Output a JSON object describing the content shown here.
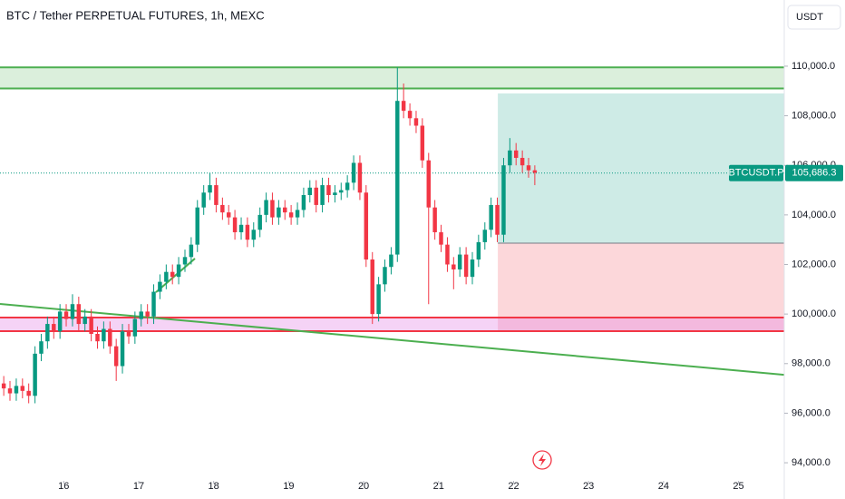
{
  "chart_data": {
    "type": "candlestick",
    "title": "BTC / Tether PERPETUAL FUTURES, 1h, MEXC",
    "currency": "USDT",
    "symbol": "BTCUSDT.P",
    "last_price": {
      "value": 105686.3,
      "label": "105,686.3"
    },
    "up_color": "#089981",
    "down_color": "#f23645",
    "xlim": [
      15.15,
      25.61
    ],
    "xticks": [
      16,
      17,
      18,
      19,
      20,
      21,
      22,
      23,
      24,
      25
    ],
    "ylim": [
      93270,
      112670
    ],
    "yticks": [
      {
        "value": 94000,
        "label": "94,000.0"
      },
      {
        "value": 96000,
        "label": "96,000.0"
      },
      {
        "value": 98000,
        "label": "98,000.0"
      },
      {
        "value": 100000,
        "label": "100,000.0"
      },
      {
        "value": 102000,
        "label": "102,000.0"
      },
      {
        "value": 104000,
        "label": "104,000.0"
      },
      {
        "value": 106000,
        "label": "106,000.0"
      },
      {
        "value": 108000,
        "label": "108,000.0"
      },
      {
        "value": 110000,
        "label": "110,000.0"
      }
    ],
    "x": [
      15.2,
      15.283,
      15.367,
      15.45,
      15.533,
      15.617,
      15.7,
      15.783,
      15.867,
      15.95,
      16.033,
      16.117,
      16.2,
      16.283,
      16.367,
      16.45,
      16.533,
      16.617,
      16.7,
      16.783,
      16.867,
      16.95,
      17.033,
      17.117,
      17.2,
      17.283,
      17.367,
      17.45,
      17.533,
      17.617,
      17.7,
      17.783,
      17.867,
      17.95,
      18.033,
      18.117,
      18.2,
      18.283,
      18.367,
      18.45,
      18.533,
      18.617,
      18.7,
      18.783,
      18.867,
      18.95,
      19.033,
      19.117,
      19.2,
      19.283,
      19.367,
      19.45,
      19.533,
      19.617,
      19.7,
      19.783,
      19.867,
      19.95,
      20.033,
      20.117,
      20.2,
      20.283,
      20.367,
      20.45,
      20.533,
      20.617,
      20.7,
      20.783,
      20.867,
      20.95,
      21.033,
      21.117,
      21.2,
      21.283,
      21.367,
      21.45,
      21.533,
      21.617,
      21.7,
      21.783,
      21.867,
      21.95,
      22.033,
      22.117,
      22.2,
      22.283
    ],
    "open": [
      97200,
      97000,
      96800,
      97100,
      96900,
      96700,
      98400,
      98900,
      99600,
      99300,
      100100,
      99800,
      100400,
      99600,
      99900,
      99200,
      98900,
      99400,
      98700,
      97900,
      99300,
      99100,
      99800,
      100100,
      99900,
      100900,
      101300,
      101700,
      101500,
      102000,
      102300,
      102800,
      104300,
      104900,
      105200,
      104400,
      104100,
      103900,
      103300,
      103600,
      103000,
      103400,
      104000,
      104600,
      103900,
      104300,
      104100,
      103900,
      104200,
      104800,
      105100,
      104400,
      105200,
      104800,
      104900,
      105000,
      105300,
      106100,
      104900,
      102200,
      100000,
      101200,
      101900,
      102400,
      108600,
      108200,
      107900,
      107600,
      106200,
      104300,
      103300,
      102800,
      102000,
      101800,
      102400,
      101500,
      102200,
      102900,
      103400,
      104400,
      103200,
      106000,
      106600,
      106300,
      106000,
      105800
    ],
    "high": [
      97500,
      97300,
      97400,
      97400,
      97200,
      98700,
      99200,
      99900,
      99900,
      100400,
      100400,
      100800,
      100700,
      100200,
      100200,
      99500,
      99700,
      99700,
      99000,
      99600,
      99600,
      100100,
      100400,
      100400,
      101200,
      101600,
      102000,
      102000,
      102300,
      102600,
      103100,
      104600,
      105200,
      105700,
      105500,
      104700,
      104400,
      104200,
      103900,
      103900,
      103700,
      104300,
      104900,
      104900,
      104600,
      104600,
      104400,
      104500,
      105100,
      105400,
      105400,
      105500,
      105500,
      105200,
      105300,
      105600,
      106400,
      106400,
      105200,
      102500,
      101500,
      102200,
      102700,
      109950,
      109300,
      108500,
      108200,
      107900,
      106500,
      104600,
      103600,
      103100,
      102300,
      102700,
      102700,
      102500,
      103200,
      103700,
      104700,
      104700,
      106300,
      107100,
      106900,
      106600,
      106300,
      106000
    ],
    "low": [
      96700,
      96500,
      96500,
      96600,
      96400,
      96400,
      98100,
      98600,
      99000,
      99000,
      99500,
      99500,
      99300,
      99300,
      98900,
      98600,
      98600,
      98400,
      97300,
      97600,
      98800,
      98800,
      99500,
      99600,
      99600,
      100600,
      101000,
      101200,
      101200,
      101700,
      102000,
      102500,
      104000,
      104600,
      104100,
      103800,
      103600,
      103000,
      103000,
      102700,
      102700,
      103100,
      103700,
      103600,
      103600,
      103800,
      103600,
      103600,
      103900,
      104500,
      104100,
      104100,
      104500,
      104500,
      104600,
      104700,
      105000,
      104600,
      101900,
      99600,
      99700,
      100900,
      101600,
      102100,
      107900,
      107600,
      107300,
      105900,
      100400,
      103000,
      102500,
      101700,
      101000,
      101500,
      101200,
      101200,
      101900,
      102600,
      103100,
      102900,
      102900,
      105700,
      106000,
      105700,
      105500,
      105200
    ],
    "close": [
      97000,
      96800,
      97100,
      96900,
      96700,
      98400,
      98900,
      99600,
      99300,
      100100,
      99800,
      100400,
      99600,
      99900,
      99200,
      98900,
      99400,
      98700,
      97900,
      99300,
      99100,
      99800,
      100100,
      99900,
      100900,
      101300,
      101700,
      101500,
      102000,
      102300,
      102800,
      104300,
      104900,
      105200,
      104400,
      104100,
      103900,
      103300,
      103600,
      103000,
      103400,
      104000,
      104600,
      103900,
      104300,
      104100,
      103900,
      104200,
      104800,
      105100,
      104400,
      105200,
      104800,
      104900,
      105000,
      105300,
      106100,
      104900,
      102200,
      100000,
      101200,
      101900,
      102400,
      108600,
      108200,
      107900,
      107600,
      106200,
      104300,
      103300,
      102800,
      102000,
      101800,
      102400,
      101500,
      102200,
      102900,
      103400,
      104400,
      103200,
      106000,
      106600,
      106300,
      106000,
      105800,
      105700
    ],
    "zones": [
      {
        "top": 109950,
        "bottom": 109100,
        "color": "#4caf50"
      },
      {
        "top": 99857,
        "bottom": 99308,
        "color": "#f23645"
      }
    ],
    "trendlines": [
      {
        "x": [
          15.15,
          25.61
        ],
        "y": [
          100407,
          97550
        ],
        "color": "#4caf50"
      },
      {
        "x": [
          17.23,
          17.75
        ],
        "y": [
          100880,
          102240
        ],
        "color": "#4caf50"
      }
    ],
    "position": {
      "x": [
        21.79,
        25.61
      ],
      "entry": 102860,
      "target": 108900,
      "stop": 99308
    }
  }
}
